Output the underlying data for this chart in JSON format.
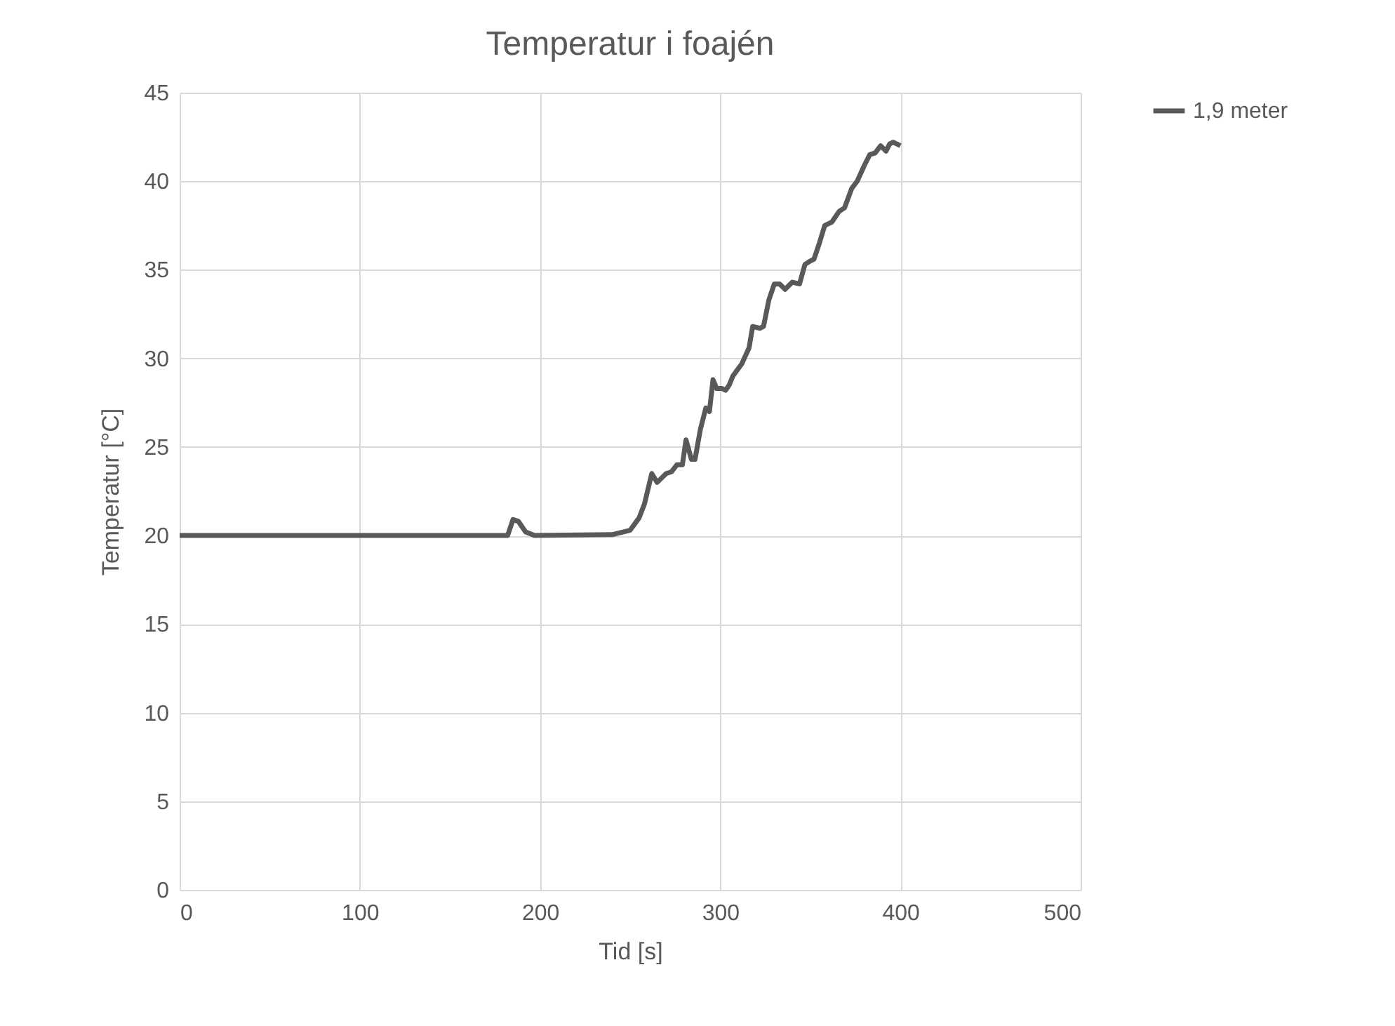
{
  "chart_data": {
    "type": "line",
    "title": "Temperatur i foajén",
    "xlabel": "Tid [s]",
    "ylabel": "Temperatur [°C]",
    "x": [
      0,
      182,
      185,
      188,
      192,
      197,
      240,
      250,
      255,
      258,
      262,
      265,
      270,
      273,
      276,
      279,
      281,
      284,
      286,
      289,
      292,
      294,
      296,
      298,
      301,
      303,
      305,
      307,
      312,
      316,
      318,
      322,
      324,
      327,
      330,
      333,
      336,
      340,
      344,
      347,
      350,
      352,
      355,
      358,
      362,
      366,
      369,
      373,
      376,
      380,
      383,
      386,
      389,
      392,
      394,
      396,
      400
    ],
    "series": [
      {
        "name": "1,9 meter",
        "color": "#595959",
        "values": [
          20,
          20,
          20.9,
          20.8,
          20.2,
          20,
          20.05,
          20.3,
          21,
          21.8,
          23.5,
          23,
          23.5,
          23.6,
          24,
          24,
          25.4,
          24.3,
          24.3,
          26,
          27.2,
          27,
          28.8,
          28.3,
          28.3,
          28.2,
          28.5,
          29,
          29.7,
          30.6,
          31.8,
          31.7,
          31.8,
          33.3,
          34.2,
          34.2,
          33.9,
          34.3,
          34.2,
          35.3,
          35.5,
          35.6,
          36.5,
          37.5,
          37.7,
          38.3,
          38.5,
          39.6,
          40,
          40.9,
          41.5,
          41.6,
          42,
          41.7,
          42.1,
          42.2,
          42
        ]
      }
    ],
    "xlim": [
      0,
      500
    ],
    "xticks": [
      0,
      100,
      200,
      300,
      400,
      500
    ],
    "ylim": [
      0,
      45
    ],
    "yticks": [
      0,
      5,
      10,
      15,
      20,
      25,
      30,
      35,
      40,
      45
    ],
    "grid": true,
    "legend": "right",
    "line_style": "solid",
    "marker": "none"
  }
}
